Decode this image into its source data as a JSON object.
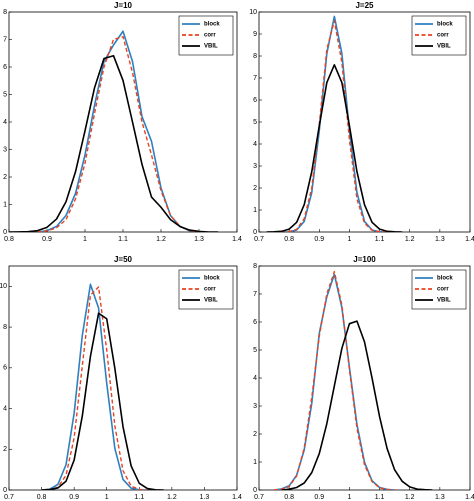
{
  "chart_data": [
    {
      "type": "line",
      "title": "J=10",
      "x": [
        0.8,
        0.825,
        0.85,
        0.875,
        0.9,
        0.925,
        0.95,
        0.975,
        1.0,
        1.025,
        1.05,
        1.075,
        1.1,
        1.125,
        1.15,
        1.175,
        1.2,
        1.225,
        1.25,
        1.275,
        1.3,
        1.325,
        1.35,
        1.375,
        1.4
      ],
      "series": [
        {
          "name": "block",
          "color": "#2f7fc1",
          "style": "solid",
          "values": [
            null,
            null,
            null,
            0,
            0.05,
            0.2,
            0.6,
            1.4,
            2.8,
            4.6,
            6.2,
            6.8,
            7.3,
            6.2,
            4.2,
            3.3,
            1.6,
            0.6,
            0.2,
            0.05,
            0,
            null,
            null,
            null,
            null
          ]
        },
        {
          "name": "corr",
          "color": "#e8431e",
          "style": "dashed",
          "values": [
            null,
            null,
            null,
            0,
            0.04,
            0.15,
            0.45,
            1.2,
            2.5,
            4.3,
            6.0,
            7.0,
            7.1,
            5.8,
            4.0,
            2.8,
            1.5,
            0.6,
            0.2,
            0.05,
            0,
            null,
            null,
            null,
            null
          ]
        },
        {
          "name": "VBIL",
          "color": "#000000",
          "style": "solid",
          "values": [
            0,
            0.003,
            0.013,
            0.05,
            0.17,
            0.47,
            1.1,
            2.19,
            3.68,
            5.24,
            6.31,
            6.41,
            5.51,
            4.0,
            2.46,
            1.27,
            0.9,
            0.45,
            0.2,
            0.07,
            0.02,
            0,
            0,
            null,
            null
          ]
        }
      ],
      "xlim": [
        0.8,
        1.4
      ],
      "xticks": [
        0.8,
        0.9,
        1,
        1.1,
        1.2,
        1.3,
        1.4
      ],
      "ylim": [
        0,
        8
      ],
      "yticks": [
        0,
        1,
        2,
        3,
        4,
        5,
        6,
        7,
        8
      ],
      "legend": "top-right"
    },
    {
      "type": "line",
      "title": "J=25",
      "x": [
        0.7,
        0.725,
        0.75,
        0.775,
        0.8,
        0.825,
        0.85,
        0.875,
        0.9,
        0.925,
        0.95,
        0.975,
        1.0,
        1.025,
        1.05,
        1.075,
        1.1,
        1.125,
        1.15,
        1.175,
        1.2,
        1.225,
        1.25,
        1.275,
        1.3,
        1.325,
        1.35,
        1.375,
        1.4
      ],
      "series": [
        {
          "name": "block",
          "color": "#2f7fc1",
          "style": "solid",
          "values": [
            null,
            null,
            null,
            0,
            0.01,
            0.09,
            0.48,
            1.79,
            4.61,
            8.11,
            9.8,
            8.11,
            4.61,
            1.79,
            0.48,
            0.09,
            0.01,
            0,
            null,
            null,
            null,
            null,
            null,
            null,
            null,
            null,
            null,
            null,
            null
          ]
        },
        {
          "name": "corr",
          "color": "#e8431e",
          "style": "dashed",
          "values": [
            null,
            null,
            null,
            0,
            0.02,
            0.12,
            0.6,
            2.0,
            4.9,
            8.3,
            9.6,
            7.7,
            4.2,
            1.5,
            0.4,
            0.08,
            0.01,
            0,
            null,
            null,
            null,
            null,
            null,
            null,
            null,
            null,
            null,
            null,
            null
          ]
        },
        {
          "name": "VBIL",
          "color": "#000000",
          "style": "solid",
          "values": [
            null,
            0,
            0.01,
            0.03,
            0.13,
            0.44,
            1.24,
            2.74,
            4.83,
            6.79,
            7.6,
            6.79,
            4.83,
            2.74,
            1.24,
            0.44,
            0.13,
            0.03,
            0.01,
            0,
            null,
            null,
            null,
            null,
            null,
            null,
            null,
            null,
            null
          ]
        }
      ],
      "xlim": [
        0.7,
        1.4
      ],
      "xticks": [
        0.7,
        0.8,
        0.9,
        1,
        1.1,
        1.2,
        1.3,
        1.4
      ],
      "ylim": [
        0,
        10
      ],
      "yticks": [
        0,
        1,
        2,
        3,
        4,
        5,
        6,
        7,
        8,
        9,
        10
      ],
      "legend": "top-right"
    },
    {
      "type": "line",
      "title": "J=50",
      "x": [
        0.7,
        0.725,
        0.75,
        0.775,
        0.8,
        0.825,
        0.85,
        0.875,
        0.9,
        0.925,
        0.95,
        0.975,
        1.0,
        1.025,
        1.05,
        1.075,
        1.1,
        1.125,
        1.15,
        1.175,
        1.2,
        1.225,
        1.25,
        1.275,
        1.3,
        1.325,
        1.35,
        1.375,
        1.4
      ],
      "series": [
        {
          "name": "block",
          "color": "#2f7fc1",
          "style": "solid",
          "values": [
            null,
            null,
            null,
            null,
            0,
            0.04,
            0.27,
            1.24,
            3.77,
            7.59,
            10.1,
            8.94,
            5.24,
            2.04,
            0.52,
            0.09,
            0.01,
            0,
            null,
            null,
            null,
            null,
            null,
            null,
            null,
            null,
            null,
            null,
            null
          ]
        },
        {
          "name": "corr",
          "color": "#e8431e",
          "style": "dashed",
          "values": [
            null,
            null,
            null,
            null,
            0,
            0.02,
            0.13,
            0.72,
            2.56,
            6.09,
            9.57,
            9.97,
            6.88,
            3.15,
            0.95,
            0.19,
            0.03,
            0,
            null,
            null,
            null,
            null,
            null,
            null,
            null,
            null,
            null,
            null,
            null
          ]
        },
        {
          "name": "VBIL",
          "color": "#000000",
          "style": "solid",
          "values": [
            null,
            null,
            null,
            null,
            0,
            0.02,
            0.1,
            0.43,
            1.47,
            3.63,
            6.56,
            8.68,
            8.41,
            5.97,
            3.11,
            1.18,
            0.33,
            0.07,
            0.01,
            0,
            null,
            null,
            null,
            null,
            null,
            null,
            null,
            null,
            null
          ]
        }
      ],
      "xlim": [
        0.7,
        1.4
      ],
      "xticks": [
        0.7,
        0.8,
        0.9,
        1,
        1.1,
        1.2,
        1.3,
        1.4
      ],
      "ylim": [
        0,
        11
      ],
      "yticks": [
        0,
        2,
        4,
        6,
        8,
        10
      ],
      "legend": "top-right"
    },
    {
      "type": "line",
      "title": "J=100",
      "x": [
        0.7,
        0.725,
        0.75,
        0.775,
        0.8,
        0.825,
        0.85,
        0.875,
        0.9,
        0.925,
        0.95,
        0.975,
        1.0,
        1.025,
        1.05,
        1.075,
        1.1,
        1.125,
        1.15,
        1.175,
        1.2,
        1.225,
        1.25,
        1.275,
        1.3,
        1.325,
        1.35,
        1.375,
        1.4
      ],
      "series": [
        {
          "name": "block",
          "color": "#2f7fc1",
          "style": "solid",
          "values": [
            null,
            null,
            0,
            0.04,
            0.15,
            0.53,
            1.43,
            3.09,
            5.6,
            6.9,
            7.7,
            6.51,
            4.38,
            2.34,
            0.99,
            0.33,
            0.09,
            0.02,
            0,
            null,
            null,
            null,
            null,
            null,
            null,
            null,
            null,
            null,
            null
          ]
        },
        {
          "name": "corr",
          "color": "#e8431e",
          "style": "dashed",
          "values": [
            null,
            null,
            0,
            0.03,
            0.12,
            0.5,
            1.5,
            3.3,
            5.5,
            7.0,
            7.8,
            6.6,
            4.3,
            2.2,
            0.9,
            0.3,
            0.08,
            0.02,
            0,
            null,
            null,
            null,
            null,
            null,
            null,
            null,
            null,
            null,
            null
          ]
        },
        {
          "name": "VBIL",
          "color": "#000000",
          "style": "solid",
          "values": [
            null,
            null,
            null,
            0,
            0.03,
            0.09,
            0.25,
            0.62,
            1.3,
            2.37,
            3.72,
            5.06,
            5.94,
            6.03,
            5.29,
            4.0,
            2.62,
            1.48,
            0.72,
            0.31,
            0.11,
            0.03,
            0.01,
            0,
            null,
            null,
            null,
            null,
            null
          ]
        }
      ],
      "xlim": [
        0.7,
        1.4
      ],
      "xticks": [
        0.7,
        0.8,
        0.9,
        1,
        1.1,
        1.2,
        1.3,
        1.4
      ],
      "ylim": [
        0,
        8
      ],
      "yticks": [
        0,
        1,
        2,
        3,
        4,
        5,
        6,
        7,
        8
      ],
      "legend": "top-right"
    }
  ]
}
